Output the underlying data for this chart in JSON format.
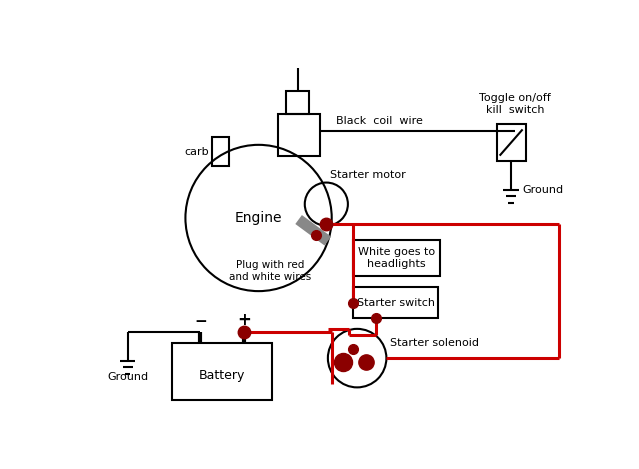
{
  "bg_color": "#ffffff",
  "black": "#000000",
  "red": "#cc0000",
  "dark_red": "#8b0000",
  "gray": "#888888",
  "engine_label": "Engine",
  "starter_motor_label": "Starter motor",
  "carb_label": "carb",
  "black_coil_wire_label": "Black  coil  wire",
  "plug_label": "Plug with red\nand white wires",
  "white_label": "White goes to\nheadlights",
  "starter_switch_label": "Starter switch",
  "starter_solenoid_label": "Starter solenoid",
  "battery_label": "Battery",
  "toggle_label": "Toggle on/off\nkill  switch",
  "ground_label": "Ground",
  "ground_label2": "Ground"
}
